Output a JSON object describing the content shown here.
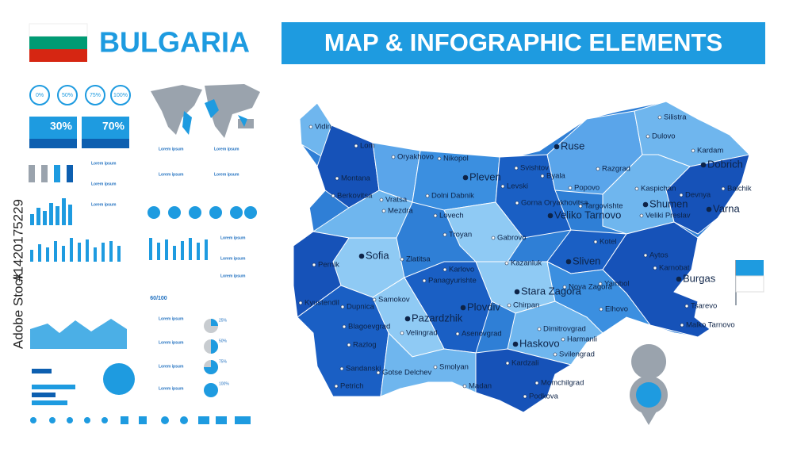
{
  "header": {
    "title": "BULGARIA",
    "subtitle": "MAP & INFOGRAPHIC ELEMENTS"
  },
  "infographic": {
    "progress_circles": [
      "0%",
      "50%",
      "75%",
      "100%"
    ],
    "people_stats": [
      "30%",
      "70%"
    ],
    "people_count": "60/100",
    "pie_labels": [
      "25%",
      "50%",
      "75%",
      "100%"
    ],
    "text_heading": "Lorem ipsum"
  },
  "map": {
    "cities": [
      "Vidin",
      "Lom",
      "Oryakhovo",
      "Nikopol",
      "Ruse",
      "Silistra",
      "Dulovo",
      "Kardam",
      "Dobrich",
      "Balchik",
      "Svishtov",
      "Byala",
      "Razgrad",
      "Popovo",
      "Kaspichan",
      "Devnya",
      "Varna",
      "Shumen",
      "Veliki Preslav",
      "Targovishte",
      "Pleven",
      "Levski",
      "Dolni Dabnik",
      "Montana",
      "Berkovitsa",
      "Vratsa",
      "Mezdra",
      "Lovech",
      "Gorna Oryakhovitsa",
      "Veliko Tarnovo",
      "Troyan",
      "Gabrovo",
      "Kotel",
      "Sliven",
      "Aytos",
      "Karnobat",
      "Burgas",
      "Pernik",
      "Sofia",
      "Zlatitsa",
      "Kazanluk",
      "Yambol",
      "Kyustendil",
      "Dupnica",
      "Samokov",
      "Panagyurishte",
      "Karlovo",
      "Stara Zagora",
      "Nova Zagora",
      "Chirpan",
      "Elhovo",
      "Tsarevo",
      "Malko Tarnovo",
      "Plovdiv",
      "Pazardzhik",
      "Asenovgrad",
      "Dimitrovgrad",
      "Haskovo",
      "Harmanli",
      "Blagoevgrad",
      "Razlog",
      "Velingrad",
      "Svilengrad",
      "Sandanski",
      "Gotse Delchev",
      "Smolyan",
      "Kardzali",
      "Momchilgrad",
      "Petrich",
      "Madan",
      "Podkova"
    ]
  },
  "watermark": {
    "source": "Adobe Stock",
    "id": "#1420175229"
  }
}
